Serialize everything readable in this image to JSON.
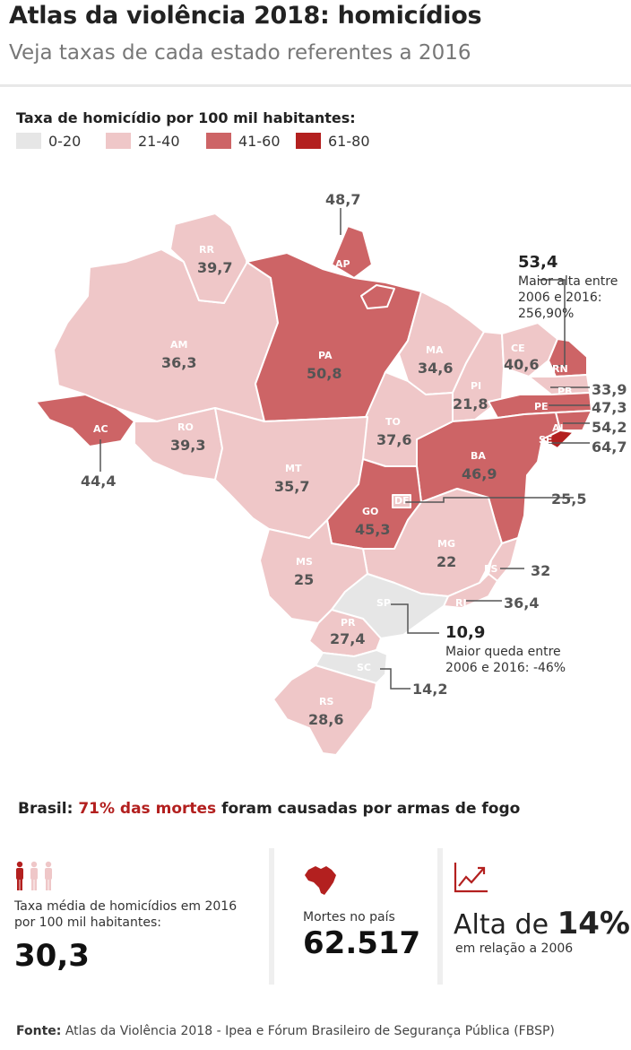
{
  "header": {
    "title": "Atlas da violência 2018: homicídios",
    "subtitle": "Veja taxas de cada estado referentes a 2016"
  },
  "legend": {
    "title": "Taxa de homicídio por 100 mil habitantes:",
    "items": [
      {
        "label": "0-20",
        "color": "#e6e6e6"
      },
      {
        "label": "21-40",
        "color": "#efc7c8"
      },
      {
        "label": "41-60",
        "color": "#cd6466"
      },
      {
        "label": "61-80",
        "color": "#b3201f"
      }
    ]
  },
  "states": [
    {
      "abbr": "RR",
      "value": "39,7"
    },
    {
      "abbr": "AP",
      "value": "48,7"
    },
    {
      "abbr": "AM",
      "value": "36,3"
    },
    {
      "abbr": "PA",
      "value": "50,8"
    },
    {
      "abbr": "MA",
      "value": "34,6"
    },
    {
      "abbr": "CE",
      "value": "40,6"
    },
    {
      "abbr": "RN",
      "value": "53,4"
    },
    {
      "abbr": "PB",
      "value": "33,9"
    },
    {
      "abbr": "PE",
      "value": "47,3"
    },
    {
      "abbr": "AL",
      "value": "54,2"
    },
    {
      "abbr": "SE",
      "value": "64,7"
    },
    {
      "abbr": "PI",
      "value": "21,8"
    },
    {
      "abbr": "AC",
      "value": "44,4"
    },
    {
      "abbr": "RO",
      "value": "39,3"
    },
    {
      "abbr": "TO",
      "value": "37,6"
    },
    {
      "abbr": "BA",
      "value": "46,9"
    },
    {
      "abbr": "MT",
      "value": "35,7"
    },
    {
      "abbr": "DF",
      "value": "25,5"
    },
    {
      "abbr": "GO",
      "value": "45,3"
    },
    {
      "abbr": "MG",
      "value": "22"
    },
    {
      "abbr": "ES",
      "value": "32"
    },
    {
      "abbr": "RJ",
      "value": "36,4"
    },
    {
      "abbr": "MS",
      "value": "25"
    },
    {
      "abbr": "SP",
      "value": "10,9"
    },
    {
      "abbr": "PR",
      "value": "27,4"
    },
    {
      "abbr": "SC",
      "value": "14,2"
    },
    {
      "abbr": "RS",
      "value": "28,6"
    }
  ],
  "notes": {
    "rn_value": "53,4",
    "rn_lines": [
      "Maior alta entre",
      "2006 e 2016:",
      "256,90%"
    ],
    "sp_value": "10,9",
    "sp_lines": [
      "Maior queda entre",
      "2006 e 2016: -46%"
    ]
  },
  "brasil": {
    "prefix": "Brasil: ",
    "highlight": "71% das mortes",
    "suffix": " foram causadas por armas de fogo"
  },
  "stats": {
    "avg_label": "Taxa média de homicídios em 2016 por 100 mil habitantes:",
    "avg_value": "30,3",
    "deaths_label": "Mortes no país",
    "deaths_value": "62.517",
    "rise_prefix": "Alta de ",
    "rise_value": "14%",
    "rise_sub": "em relação a 2006"
  },
  "colors": {
    "accent": "#b3201f",
    "people_light": "#efc7c8"
  },
  "icons": [
    "people-icon",
    "brazil-map-icon",
    "trend-up-icon"
  ],
  "source": {
    "label": "Fonte:",
    "text": " Atlas da Violência 2018 - Ipea e Fórum Brasileiro de Segurança Pública (FBSP)"
  }
}
